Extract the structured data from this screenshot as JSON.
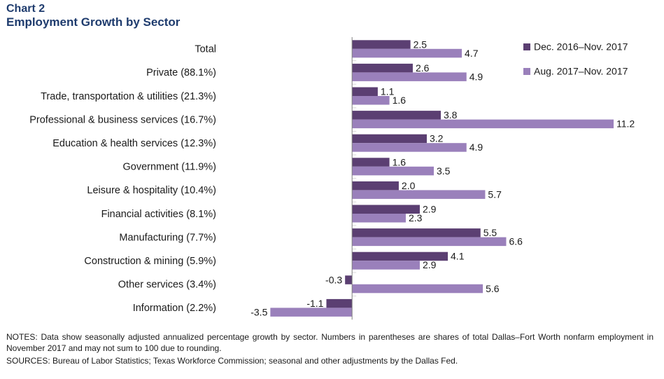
{
  "header": {
    "chart_number": "Chart 2",
    "title": "Employment Growth by Sector"
  },
  "colors": {
    "series1": "#5b3f72",
    "series2": "#9a80bb",
    "title": "#1f3c6e",
    "separator": "#d9d9d9"
  },
  "chart_data": {
    "type": "bar",
    "orientation": "horizontal",
    "title": "Employment Growth by Sector",
    "categories": [
      "Total",
      "Private (88.1%)",
      "Trade, transportation & utilities (21.3%)",
      "Professional & business services (16.7%)",
      "Education & health services (12.3%)",
      "Government (11.9%)",
      "Leisure & hospitality (10.4%)",
      "Financial activities (8.1%)",
      "Manufacturing (7.7%)",
      "Construction & mining (5.9%)",
      "Other services (3.4%)",
      "Information (2.2%)"
    ],
    "series": [
      {
        "name": "Dec. 2016–Nov. 2017",
        "values": [
          2.5,
          2.6,
          1.1,
          3.8,
          3.2,
          1.6,
          2.0,
          2.9,
          5.5,
          4.1,
          -0.3,
          -1.1
        ],
        "labels": [
          "2.5",
          "2.6",
          "1.1",
          "3.8",
          "3.2",
          "1.6",
          "2.0",
          "2.9",
          "5.5",
          "4.1",
          "-0.3",
          "-1.1"
        ]
      },
      {
        "name": "Aug. 2017–Nov. 2017",
        "values": [
          4.7,
          4.9,
          1.6,
          11.2,
          4.9,
          3.5,
          5.7,
          2.3,
          6.6,
          2.9,
          5.6,
          -3.5
        ],
        "labels": [
          "4.7",
          "4.9",
          "1.6",
          "11.2",
          "4.9",
          "3.5",
          "5.7",
          "2.3",
          "6.6",
          "2.9",
          "5.6",
          "-3.5"
        ]
      }
    ],
    "xlim": [
      -4.2,
      11.2
    ],
    "legend_position": "top-right",
    "grid": false
  },
  "notes": {
    "notes_text": "NOTES: Data show seasonally adjusted annualized percentage growth by sector. Numbers in parentheses are shares of total Dallas–Fort Worth nonfarm employment in November  2017 and may not sum to 100 due to rounding.",
    "sources_text": "SOURCES: Bureau of Labor Statistics; Texas Workforce Commission; seasonal and other adjustments by the Dallas Fed."
  }
}
